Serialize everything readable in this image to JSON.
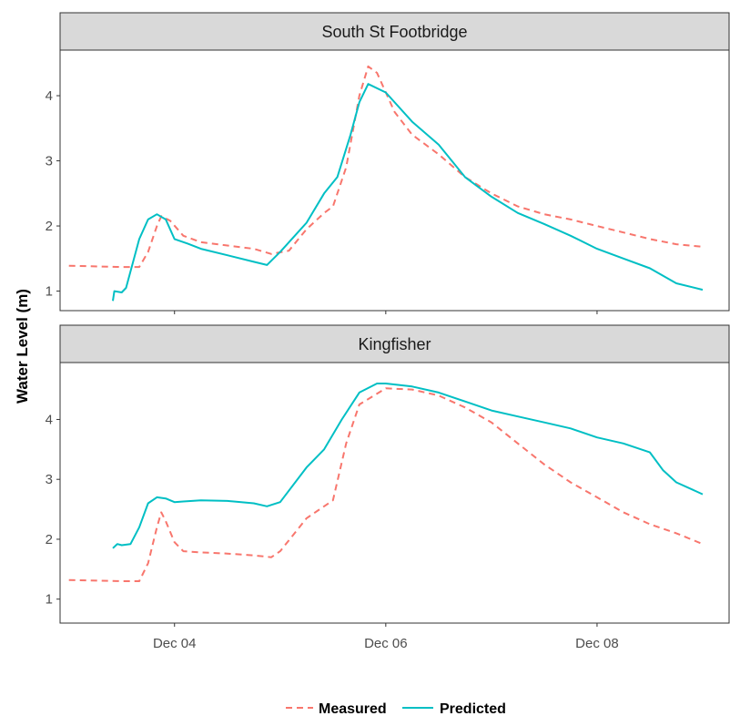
{
  "colors": {
    "measured": "#F8766D",
    "predicted": "#00BFC4",
    "strip_fill": "#D9D9D9",
    "panel_border": "#333333"
  },
  "ylabel": "Water Level (m)",
  "legend": {
    "position": "bottom",
    "items": [
      {
        "label": "Measured",
        "line": "dashed"
      },
      {
        "label": "Predicted",
        "line": "solid"
      }
    ]
  },
  "chart_data": [
    {
      "type": "line",
      "facet": "South St Footbridge",
      "xaxis": {
        "type": "date",
        "range": [
          "2021-12-02T22:00",
          "2021-12-09T06:00"
        ],
        "ticks": [
          "Dec 04",
          "Dec 06",
          "Dec 08"
        ],
        "tick_dates": [
          "2021-12-04",
          "2021-12-06",
          "2021-12-08"
        ],
        "show_tick_labels": false
      },
      "ylim": [
        0.7,
        4.7
      ],
      "yticks": [
        1,
        2,
        3,
        4
      ],
      "grid": false,
      "series": [
        {
          "name": "Measured",
          "style": "dashed",
          "x": [
            "2021-12-03T00:00",
            "2021-12-03T12:00",
            "2021-12-03T16:00",
            "2021-12-03T18:00",
            "2021-12-03T20:00",
            "2021-12-03T21:00",
            "2021-12-03T23:00",
            "2021-12-04T02:00",
            "2021-12-04T06:00",
            "2021-12-04T12:00",
            "2021-12-04T18:00",
            "2021-12-04T22:00",
            "2021-12-05T02:00",
            "2021-12-05T06:00",
            "2021-12-05T10:00",
            "2021-12-05T12:00",
            "2021-12-05T15:00",
            "2021-12-05T18:00",
            "2021-12-05T20:00",
            "2021-12-05T22:00",
            "2021-12-06T02:00",
            "2021-12-06T06:00",
            "2021-12-06T12:00",
            "2021-12-06T18:00",
            "2021-12-07T00:00",
            "2021-12-07T06:00",
            "2021-12-07T12:00",
            "2021-12-07T18:00",
            "2021-12-08T00:00",
            "2021-12-08T06:00",
            "2021-12-08T12:00",
            "2021-12-08T18:00",
            "2021-12-09T00:00"
          ],
          "y": [
            1.39,
            1.37,
            1.37,
            1.6,
            2.0,
            2.15,
            2.08,
            1.85,
            1.75,
            1.7,
            1.65,
            1.57,
            1.62,
            1.95,
            2.2,
            2.3,
            2.9,
            4.0,
            4.45,
            4.35,
            3.75,
            3.4,
            3.1,
            2.75,
            2.5,
            2.3,
            2.18,
            2.1,
            2.0,
            1.9,
            1.8,
            1.72,
            1.68
          ]
        },
        {
          "name": "Predicted",
          "style": "solid",
          "x": [
            "2021-12-03T10:00",
            "2021-12-03T10:20",
            "2021-12-03T12:00",
            "2021-12-03T13:00",
            "2021-12-03T16:00",
            "2021-12-03T18:00",
            "2021-12-03T20:00",
            "2021-12-03T22:00",
            "2021-12-04T00:00",
            "2021-12-04T03:00",
            "2021-12-04T06:00",
            "2021-12-04T12:00",
            "2021-12-04T18:00",
            "2021-12-04T21:00",
            "2021-12-05T00:00",
            "2021-12-05T06:00",
            "2021-12-05T10:00",
            "2021-12-05T13:00",
            "2021-12-05T16:00",
            "2021-12-05T18:00",
            "2021-12-05T20:00",
            "2021-12-06T00:00",
            "2021-12-06T06:00",
            "2021-12-06T12:00",
            "2021-12-06T18:00",
            "2021-12-07T00:00",
            "2021-12-07T06:00",
            "2021-12-07T12:00",
            "2021-12-07T18:00",
            "2021-12-08T00:00",
            "2021-12-08T06:00",
            "2021-12-08T12:00",
            "2021-12-08T18:00",
            "2021-12-09T00:00"
          ],
          "y": [
            0.85,
            1.0,
            0.98,
            1.05,
            1.8,
            2.1,
            2.18,
            2.1,
            1.8,
            1.73,
            1.65,
            1.55,
            1.45,
            1.4,
            1.6,
            2.05,
            2.5,
            2.75,
            3.4,
            3.9,
            4.18,
            4.05,
            3.6,
            3.25,
            2.75,
            2.45,
            2.2,
            2.03,
            1.85,
            1.65,
            1.5,
            1.35,
            1.12,
            1.02
          ]
        }
      ]
    },
    {
      "type": "line",
      "facet": "Kingfisher",
      "xaxis": {
        "type": "date",
        "range": [
          "2021-12-02T22:00",
          "2021-12-09T06:00"
        ],
        "ticks": [
          "Dec 04",
          "Dec 06",
          "Dec 08"
        ],
        "tick_dates": [
          "2021-12-04",
          "2021-12-06",
          "2021-12-08"
        ],
        "show_tick_labels": true
      },
      "ylim": [
        0.6,
        4.95
      ],
      "yticks": [
        1,
        2,
        3,
        4
      ],
      "grid": false,
      "series": [
        {
          "name": "Measured",
          "style": "dashed",
          "x": [
            "2021-12-03T00:00",
            "2021-12-03T12:00",
            "2021-12-03T16:00",
            "2021-12-03T18:00",
            "2021-12-03T20:00",
            "2021-12-03T21:00",
            "2021-12-03T22:00",
            "2021-12-04T00:00",
            "2021-12-04T02:00",
            "2021-12-04T06:00",
            "2021-12-04T12:00",
            "2021-12-04T18:00",
            "2021-12-04T22:00",
            "2021-12-05T00:00",
            "2021-12-05T06:00",
            "2021-12-05T10:00",
            "2021-12-05T12:00",
            "2021-12-05T15:00",
            "2021-12-05T18:00",
            "2021-12-06T00:00",
            "2021-12-06T06:00",
            "2021-12-06T12:00",
            "2021-12-06T18:00",
            "2021-12-07T00:00",
            "2021-12-07T06:00",
            "2021-12-07T12:00",
            "2021-12-07T18:00",
            "2021-12-08T00:00",
            "2021-12-08T06:00",
            "2021-12-08T12:00",
            "2021-12-08T18:00",
            "2021-12-09T00:00"
          ],
          "y": [
            1.32,
            1.3,
            1.3,
            1.6,
            2.2,
            2.45,
            2.3,
            1.95,
            1.8,
            1.78,
            1.76,
            1.73,
            1.7,
            1.8,
            2.35,
            2.55,
            2.65,
            3.6,
            4.25,
            4.52,
            4.5,
            4.4,
            4.2,
            3.95,
            3.6,
            3.25,
            2.95,
            2.7,
            2.45,
            2.25,
            2.1,
            1.92
          ]
        },
        {
          "name": "Predicted",
          "style": "solid",
          "x": [
            "2021-12-03T10:00",
            "2021-12-03T11:00",
            "2021-12-03T12:00",
            "2021-12-03T14:00",
            "2021-12-03T16:00",
            "2021-12-03T18:00",
            "2021-12-03T20:00",
            "2021-12-03T22:00",
            "2021-12-04T00:00",
            "2021-12-04T02:00",
            "2021-12-04T06:00",
            "2021-12-04T12:00",
            "2021-12-04T18:00",
            "2021-12-04T21:00",
            "2021-12-05T00:00",
            "2021-12-05T06:00",
            "2021-12-05T10:00",
            "2021-12-05T14:00",
            "2021-12-05T18:00",
            "2021-12-05T22:00",
            "2021-12-06T00:00",
            "2021-12-06T06:00",
            "2021-12-06T12:00",
            "2021-12-06T18:00",
            "2021-12-07T00:00",
            "2021-12-07T06:00",
            "2021-12-07T12:00",
            "2021-12-07T18:00",
            "2021-12-08T00:00",
            "2021-12-08T06:00",
            "2021-12-08T12:00",
            "2021-12-08T15:00",
            "2021-12-08T18:00",
            "2021-12-09T00:00"
          ],
          "y": [
            1.85,
            1.92,
            1.9,
            1.92,
            2.2,
            2.6,
            2.7,
            2.68,
            2.62,
            2.63,
            2.65,
            2.64,
            2.6,
            2.55,
            2.62,
            3.2,
            3.5,
            4.0,
            4.45,
            4.6,
            4.6,
            4.55,
            4.45,
            4.3,
            4.15,
            4.05,
            3.95,
            3.85,
            3.7,
            3.6,
            3.45,
            3.15,
            2.95,
            2.75
          ]
        }
      ]
    }
  ]
}
